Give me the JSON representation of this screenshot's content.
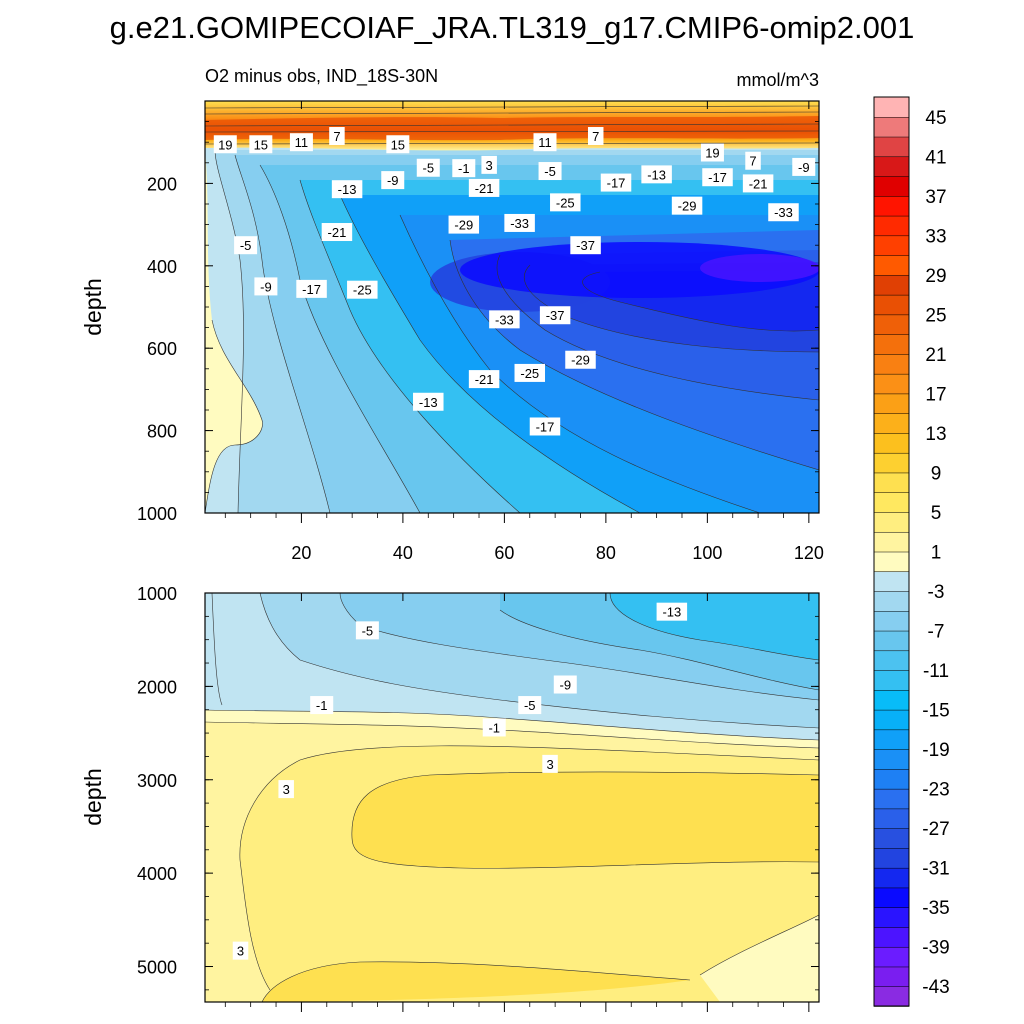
{
  "figure": {
    "title": "g.e21.GOMIPECOIAF_JRA.TL319_g17.CMIP6-omip2.001",
    "subtitle_left": "O2 minus obs, IND_18S-30N",
    "subtitle_right": "mmol/m^3"
  },
  "chart_data": [
    {
      "type": "contour",
      "panel": "upper",
      "ylabel": "depth",
      "xlabel": "",
      "ylim": [
        0,
        1000
      ],
      "yaxis_inverted": true,
      "xlim": [
        1,
        122
      ],
      "yticks": [
        "200",
        "400",
        "600",
        "800",
        "1000"
      ],
      "ytick_values": [
        200,
        400,
        600,
        800,
        1000
      ],
      "xticks": [
        "20",
        "40",
        "60",
        "80",
        "100",
        "120"
      ],
      "xtick_values": [
        20,
        40,
        60,
        80,
        100,
        120
      ],
      "contour_labels": [
        {
          "text": "19",
          "x": 5,
          "y": 105
        },
        {
          "text": "15",
          "x": 12,
          "y": 105
        },
        {
          "text": "11",
          "x": 20,
          "y": 100
        },
        {
          "text": "7",
          "x": 27,
          "y": 85
        },
        {
          "text": "15",
          "x": 39,
          "y": 105
        },
        {
          "text": "11",
          "x": 68,
          "y": 100
        },
        {
          "text": "7",
          "x": 78,
          "y": 85
        },
        {
          "text": "19",
          "x": 101,
          "y": 125
        },
        {
          "text": "7",
          "x": 109,
          "y": 145
        },
        {
          "text": "-9",
          "x": 119,
          "y": 160
        },
        {
          "text": "-5",
          "x": 45,
          "y": 162
        },
        {
          "text": "-1",
          "x": 52,
          "y": 163
        },
        {
          "text": "3",
          "x": 57,
          "y": 155
        },
        {
          "text": "-9",
          "x": 38,
          "y": 192
        },
        {
          "text": "-5",
          "x": 69,
          "y": 170
        },
        {
          "text": "-13",
          "x": 90,
          "y": 178
        },
        {
          "text": "-17",
          "x": 102,
          "y": 185
        },
        {
          "text": "-21",
          "x": 110,
          "y": 200
        },
        {
          "text": "-17",
          "x": 82,
          "y": 198
        },
        {
          "text": "-13",
          "x": 29,
          "y": 214
        },
        {
          "text": "-21",
          "x": 56,
          "y": 211
        },
        {
          "text": "-25",
          "x": 72,
          "y": 246
        },
        {
          "text": "-29",
          "x": 96,
          "y": 254
        },
        {
          "text": "-33",
          "x": 115,
          "y": 270
        },
        {
          "text": "-29",
          "x": 52,
          "y": 300
        },
        {
          "text": "-33",
          "x": 63,
          "y": 296
        },
        {
          "text": "-21",
          "x": 27,
          "y": 318
        },
        {
          "text": "-5",
          "x": 9,
          "y": 350
        },
        {
          "text": "-37",
          "x": 76,
          "y": 350
        },
        {
          "text": "-9",
          "x": 13,
          "y": 450
        },
        {
          "text": "-17",
          "x": 22,
          "y": 456
        },
        {
          "text": "-25",
          "x": 32,
          "y": 458
        },
        {
          "text": "-33",
          "x": 60,
          "y": 530
        },
        {
          "text": "-37",
          "x": 70,
          "y": 520
        },
        {
          "text": "-29",
          "x": 75,
          "y": 628
        },
        {
          "text": "-25",
          "x": 65,
          "y": 660
        },
        {
          "text": "-21",
          "x": 56,
          "y": 675
        },
        {
          "text": "-13",
          "x": 45,
          "y": 730
        },
        {
          "text": "-17",
          "x": 68,
          "y": 790
        }
      ]
    },
    {
      "type": "contour",
      "panel": "lower",
      "ylabel": "depth",
      "xlabel": "",
      "ylim": [
        1000,
        5380
      ],
      "yaxis_inverted": true,
      "xlim": [
        1,
        122
      ],
      "yticks": [
        "1000",
        "2000",
        "3000",
        "4000",
        "5000"
      ],
      "ytick_values": [
        1000,
        2000,
        3000,
        4000,
        5000
      ],
      "contour_labels": [
        {
          "text": "-13",
          "x": 93,
          "y": 1200
        },
        {
          "text": "-5",
          "x": 33,
          "y": 1400
        },
        {
          "text": "-9",
          "x": 72,
          "y": 1980
        },
        {
          "text": "-1",
          "x": 24,
          "y": 2200
        },
        {
          "text": "-5",
          "x": 65,
          "y": 2200
        },
        {
          "text": "-1",
          "x": 58,
          "y": 2440
        },
        {
          "text": "3",
          "x": 69,
          "y": 2830
        },
        {
          "text": "3",
          "x": 17,
          "y": 3100
        },
        {
          "text": "3",
          "x": 8,
          "y": 4830
        }
      ]
    },
    {
      "type": "colorbar",
      "units": "mmol/m^3",
      "levels_low_to_high": [
        -45,
        -43,
        -41,
        -39,
        -37,
        -35,
        -33,
        -31,
        -29,
        -27,
        -25,
        -23,
        -21,
        -19,
        -17,
        -15,
        -13,
        -11,
        -9,
        -7,
        -5,
        -3,
        -1,
        1,
        3,
        5,
        7,
        9,
        11,
        13,
        15,
        17,
        19,
        21,
        23,
        25,
        27,
        29,
        31,
        33,
        35,
        37,
        39,
        41,
        43,
        45
      ],
      "tick_labels_top_to_bottom": [
        "45",
        "41",
        "37",
        "33",
        "29",
        "25",
        "21",
        "17",
        "13",
        "9",
        "5",
        "1",
        "-3",
        "-7",
        "-11",
        "-15",
        "-19",
        "-23",
        "-27",
        "-31",
        "-35",
        "-39",
        "-43"
      ],
      "colors_low_to_high": [
        "#8a2be2",
        "#7a1ef0",
        "#6b1cff",
        "#4c14ff",
        "#2a14ff",
        "#0a0aff",
        "#1428f0",
        "#2244e0",
        "#2850e0",
        "#2a60ea",
        "#2a70f0",
        "#1e80f4",
        "#1a90f6",
        "#10a0f8",
        "#08b0f8",
        "#08bcf8",
        "#34c0f2",
        "#4cc2f0",
        "#68c6ee",
        "#86cef0",
        "#a2d8f0",
        "#c0e4f2",
        "#fffbc0",
        "#fff4a0",
        "#ffee80",
        "#ffe860",
        "#fee050",
        "#fdd030",
        "#fcc01e",
        "#fcb01a",
        "#fba016",
        "#fb9016",
        "#f98012",
        "#f4700c",
        "#ef6008",
        "#e95004",
        "#e04004",
        "#ff5a00",
        "#ff4000",
        "#ff2a00",
        "#ff1400",
        "#e00000",
        "#d81818",
        "#e04444",
        "#ee7a7a",
        "#ffb4b4"
      ]
    }
  ]
}
